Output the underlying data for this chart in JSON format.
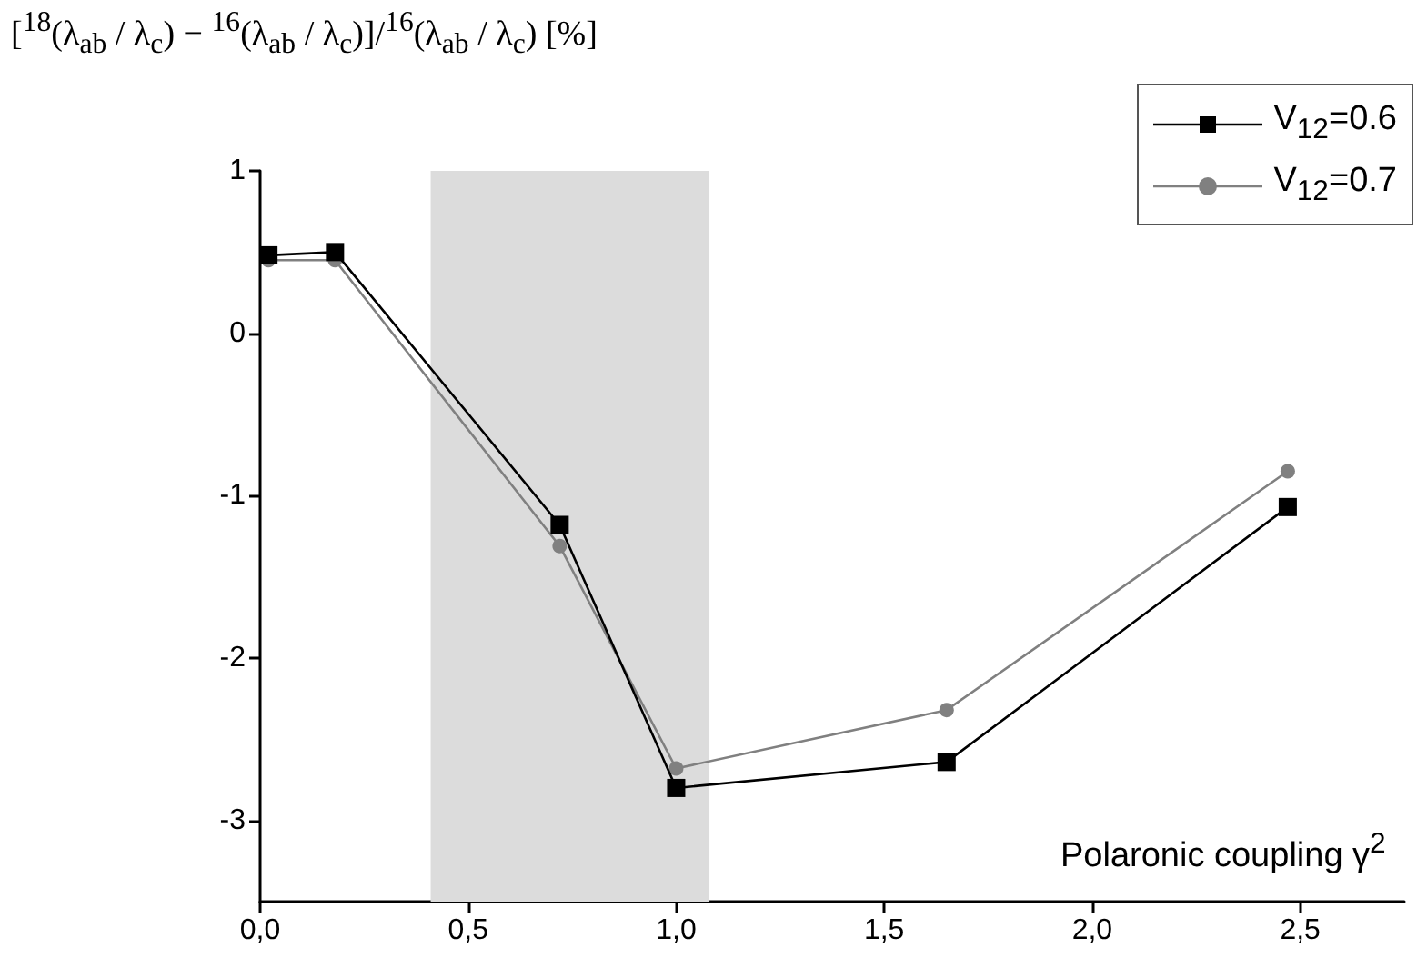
{
  "chart_data": {
    "type": "line",
    "ylabel": "[$^{18}$(λ$_{ab}$ / λ$_{c}$) − $^{16}$(λ$_{ab}$ / λ$_{c}$)]/$^{16}$(λ$_{ab}$ / λ$_{c}$) [%]",
    "xlabel": "Polaronic coupling γ$^{2}$",
    "x": [
      0.02,
      0.18,
      0.72,
      1.0,
      1.65,
      2.47
    ],
    "series": [
      {
        "name": "V$_{12}$=0.6",
        "color": "#000000",
        "marker": "square",
        "values": [
          0.48,
          0.5,
          -1.18,
          -2.8,
          -2.64,
          -1.07
        ]
      },
      {
        "name": "V$_{12}$=0.7",
        "color": "#808080",
        "marker": "circle",
        "values": [
          0.45,
          0.45,
          -1.31,
          -2.68,
          -2.32,
          -0.85
        ]
      }
    ],
    "xlim": [
      0,
      2.75
    ],
    "xticks": [
      {
        "value": 0,
        "label": "0,0"
      },
      {
        "value": 0.5,
        "label": "0,5"
      },
      {
        "value": 1,
        "label": "1,0"
      },
      {
        "value": 1.5,
        "label": "1,5"
      },
      {
        "value": 2,
        "label": "2,0"
      },
      {
        "value": 2.5,
        "label": "2,5"
      }
    ],
    "ylim": [
      -3.5,
      1
    ],
    "yticks": [
      -3,
      -2,
      -1,
      0,
      1
    ],
    "bands": [
      {
        "axis": "x",
        "from": 0.41,
        "to": 1.08,
        "color": "#dcdcdc"
      }
    ],
    "grid": false,
    "legend": "top right",
    "line_style": "solid"
  }
}
